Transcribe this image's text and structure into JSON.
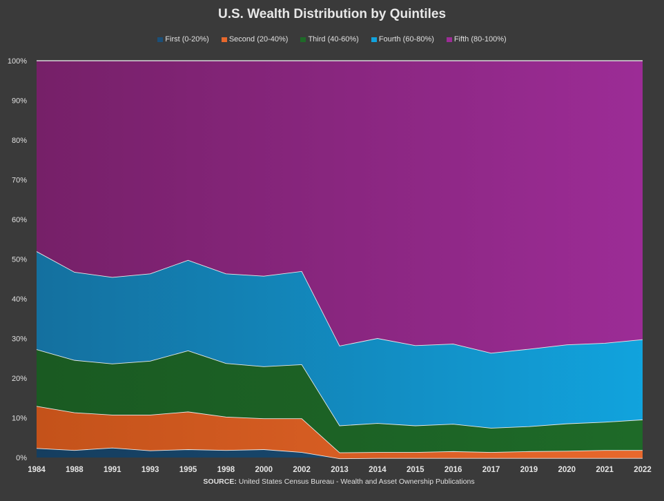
{
  "chart_data": {
    "type": "area",
    "stacked": true,
    "title": "U.S. Wealth Distribution by Quintiles",
    "categories": [
      "1984",
      "1988",
      "1991",
      "1993",
      "1995",
      "1998",
      "2000",
      "2002",
      "2013",
      "2014",
      "2015",
      "2016",
      "2017",
      "2019",
      "2020",
      "2021",
      "2022"
    ],
    "ylim": [
      0,
      100
    ],
    "yticks": [
      0,
      10,
      20,
      30,
      40,
      50,
      60,
      70,
      80,
      90,
      100
    ],
    "ytick_suffix": "%",
    "grid": false,
    "legend_position": "top",
    "series": [
      {
        "name": "First (0-20%)",
        "color": "#1b4f78",
        "color_dark": "#153e5f",
        "values": [
          2.3,
          1.8,
          2.4,
          1.7,
          2.0,
          1.8,
          2.0,
          1.3,
          -0.3,
          -0.2,
          -0.2,
          -0.2,
          -0.2,
          -0.2,
          -0.2,
          -0.2,
          -0.2
        ]
      },
      {
        "name": "Second (20-40%)",
        "color": "#e8682c",
        "color_dark": "#c4521a",
        "values": [
          10.6,
          9.5,
          8.3,
          9.0,
          9.5,
          8.4,
          7.8,
          8.5,
          1.5,
          1.5,
          1.5,
          1.7,
          1.5,
          1.7,
          1.8,
          2.0,
          2.0
        ]
      },
      {
        "name": "Third (40-60%)",
        "color": "#1e6a28",
        "color_dark": "#1a5a22",
        "values": [
          14.3,
          13.2,
          12.9,
          13.6,
          15.4,
          13.5,
          13.1,
          13.6,
          6.8,
          7.3,
          6.7,
          6.9,
          6.1,
          6.3,
          6.9,
          7.1,
          7.7
        ]
      },
      {
        "name": "Fourth (60-80%)",
        "color": "#11a3dd",
        "color_dark": "#14709f",
        "values": [
          24.7,
          22.2,
          21.8,
          22.0,
          22.8,
          22.6,
          22.8,
          23.5,
          20.1,
          21.4,
          20.2,
          20.2,
          18.9,
          19.5,
          19.9,
          19.9,
          20.2
        ]
      },
      {
        "name": "Fifth (80-100%)",
        "color": "#9c2c96",
        "color_dark": "#762068",
        "values": [
          48.1,
          53.3,
          54.6,
          53.7,
          50.3,
          53.7,
          54.3,
          53.1,
          71.9,
          70.0,
          71.8,
          71.4,
          73.7,
          72.7,
          71.6,
          71.2,
          70.3
        ]
      }
    ]
  },
  "source": {
    "label": "SOURCE:",
    "text": "United States Census Bureau - Wealth and Asset Ownership Publications"
  }
}
